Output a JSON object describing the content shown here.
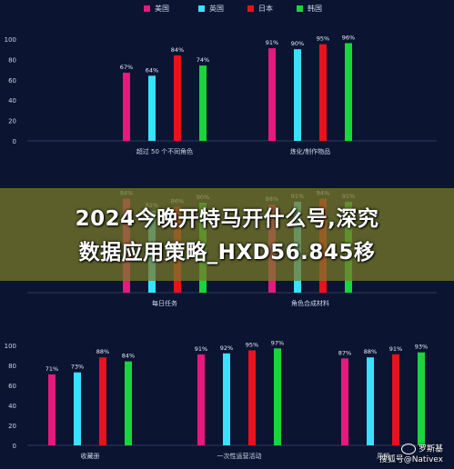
{
  "legend": [
    {
      "name": "美国",
      "color": "#e6197c"
    },
    {
      "name": "英国",
      "color": "#38e1ff"
    },
    {
      "name": "日本",
      "color": "#e8121e"
    },
    {
      "name": "韩国",
      "color": "#19d43c"
    }
  ],
  "chart_data": [
    {
      "type": "bar",
      "categories": [
        "超过 50 个不同角色",
        "炼化/制作物品"
      ],
      "series": [
        {
          "name": "美国",
          "values": [
            67,
            91
          ]
        },
        {
          "name": "英国",
          "values": [
            64,
            90
          ]
        },
        {
          "name": "日本",
          "values": [
            84,
            95
          ]
        },
        {
          "name": "韩国",
          "values": [
            74,
            96
          ]
        }
      ],
      "ylim": [
        0,
        100
      ],
      "yticks": [
        "0",
        "20",
        "40",
        "60",
        "80",
        "100"
      ],
      "grid": false
    },
    {
      "type": "bar",
      "categories": [
        "每日任务",
        "角色合成材料"
      ],
      "series": [
        {
          "name": "美国",
          "values": [
            94,
            88
          ]
        },
        {
          "name": "英国",
          "values": [
            82,
            91
          ]
        },
        {
          "name": "日本",
          "values": [
            86,
            94
          ]
        },
        {
          "name": "韩国",
          "values": [
            90,
            91
          ]
        }
      ],
      "ylim": [
        0,
        100
      ],
      "grid": false
    },
    {
      "type": "bar",
      "categories": [
        "收藏册",
        "一次性运营活动",
        "周期性运营活动"
      ],
      "category_labels_shown": [
        "收藏册",
        "一次性运营活动",
        "周期"
      ],
      "series": [
        {
          "name": "美国",
          "values": [
            71,
            91,
            87
          ]
        },
        {
          "name": "英国",
          "values": [
            73,
            92,
            88
          ]
        },
        {
          "name": "日本",
          "values": [
            88,
            95,
            91
          ]
        },
        {
          "name": "韩国",
          "values": [
            84,
            97,
            93
          ]
        }
      ],
      "ylim": [
        0,
        100
      ],
      "yticks": [
        "0",
        "20",
        "40",
        "60",
        "80",
        "100"
      ],
      "grid": false
    }
  ],
  "banner": {
    "line1": "2024今晚开特马开什么号,深究",
    "line2": "数据应用策略_HXD56.845移"
  },
  "watermark": {
    "line1": "罗斯基",
    "line2": "搜狐号@Nativex"
  }
}
